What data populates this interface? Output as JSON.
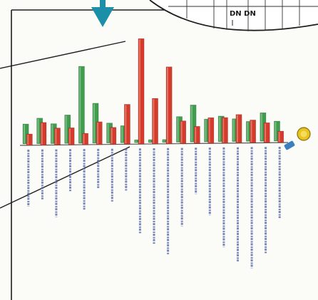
{
  "scene": {
    "arrow_color": "#1c8fa8",
    "frame_color": "#222222",
    "callout_text": "DN DN"
  },
  "chart_data": {
    "type": "bar",
    "axis_labels_legible": false,
    "series": [
      {
        "color": "#d63a2a",
        "values": [
          4,
          8,
          6,
          6,
          4,
          8,
          6,
          14,
          37,
          16,
          27,
          8,
          6,
          9,
          9,
          10,
          8,
          7,
          4
        ]
      },
      {
        "color": "#3f9e4d",
        "values": [
          7,
          9,
          7,
          10,
          27,
          14,
          7,
          6,
          1,
          1,
          1,
          9,
          13,
          8,
          9,
          8,
          7,
          10,
          7
        ]
      }
    ],
    "marker_colors": [
      "#e8c422",
      "#3a7fc0"
    ]
  }
}
